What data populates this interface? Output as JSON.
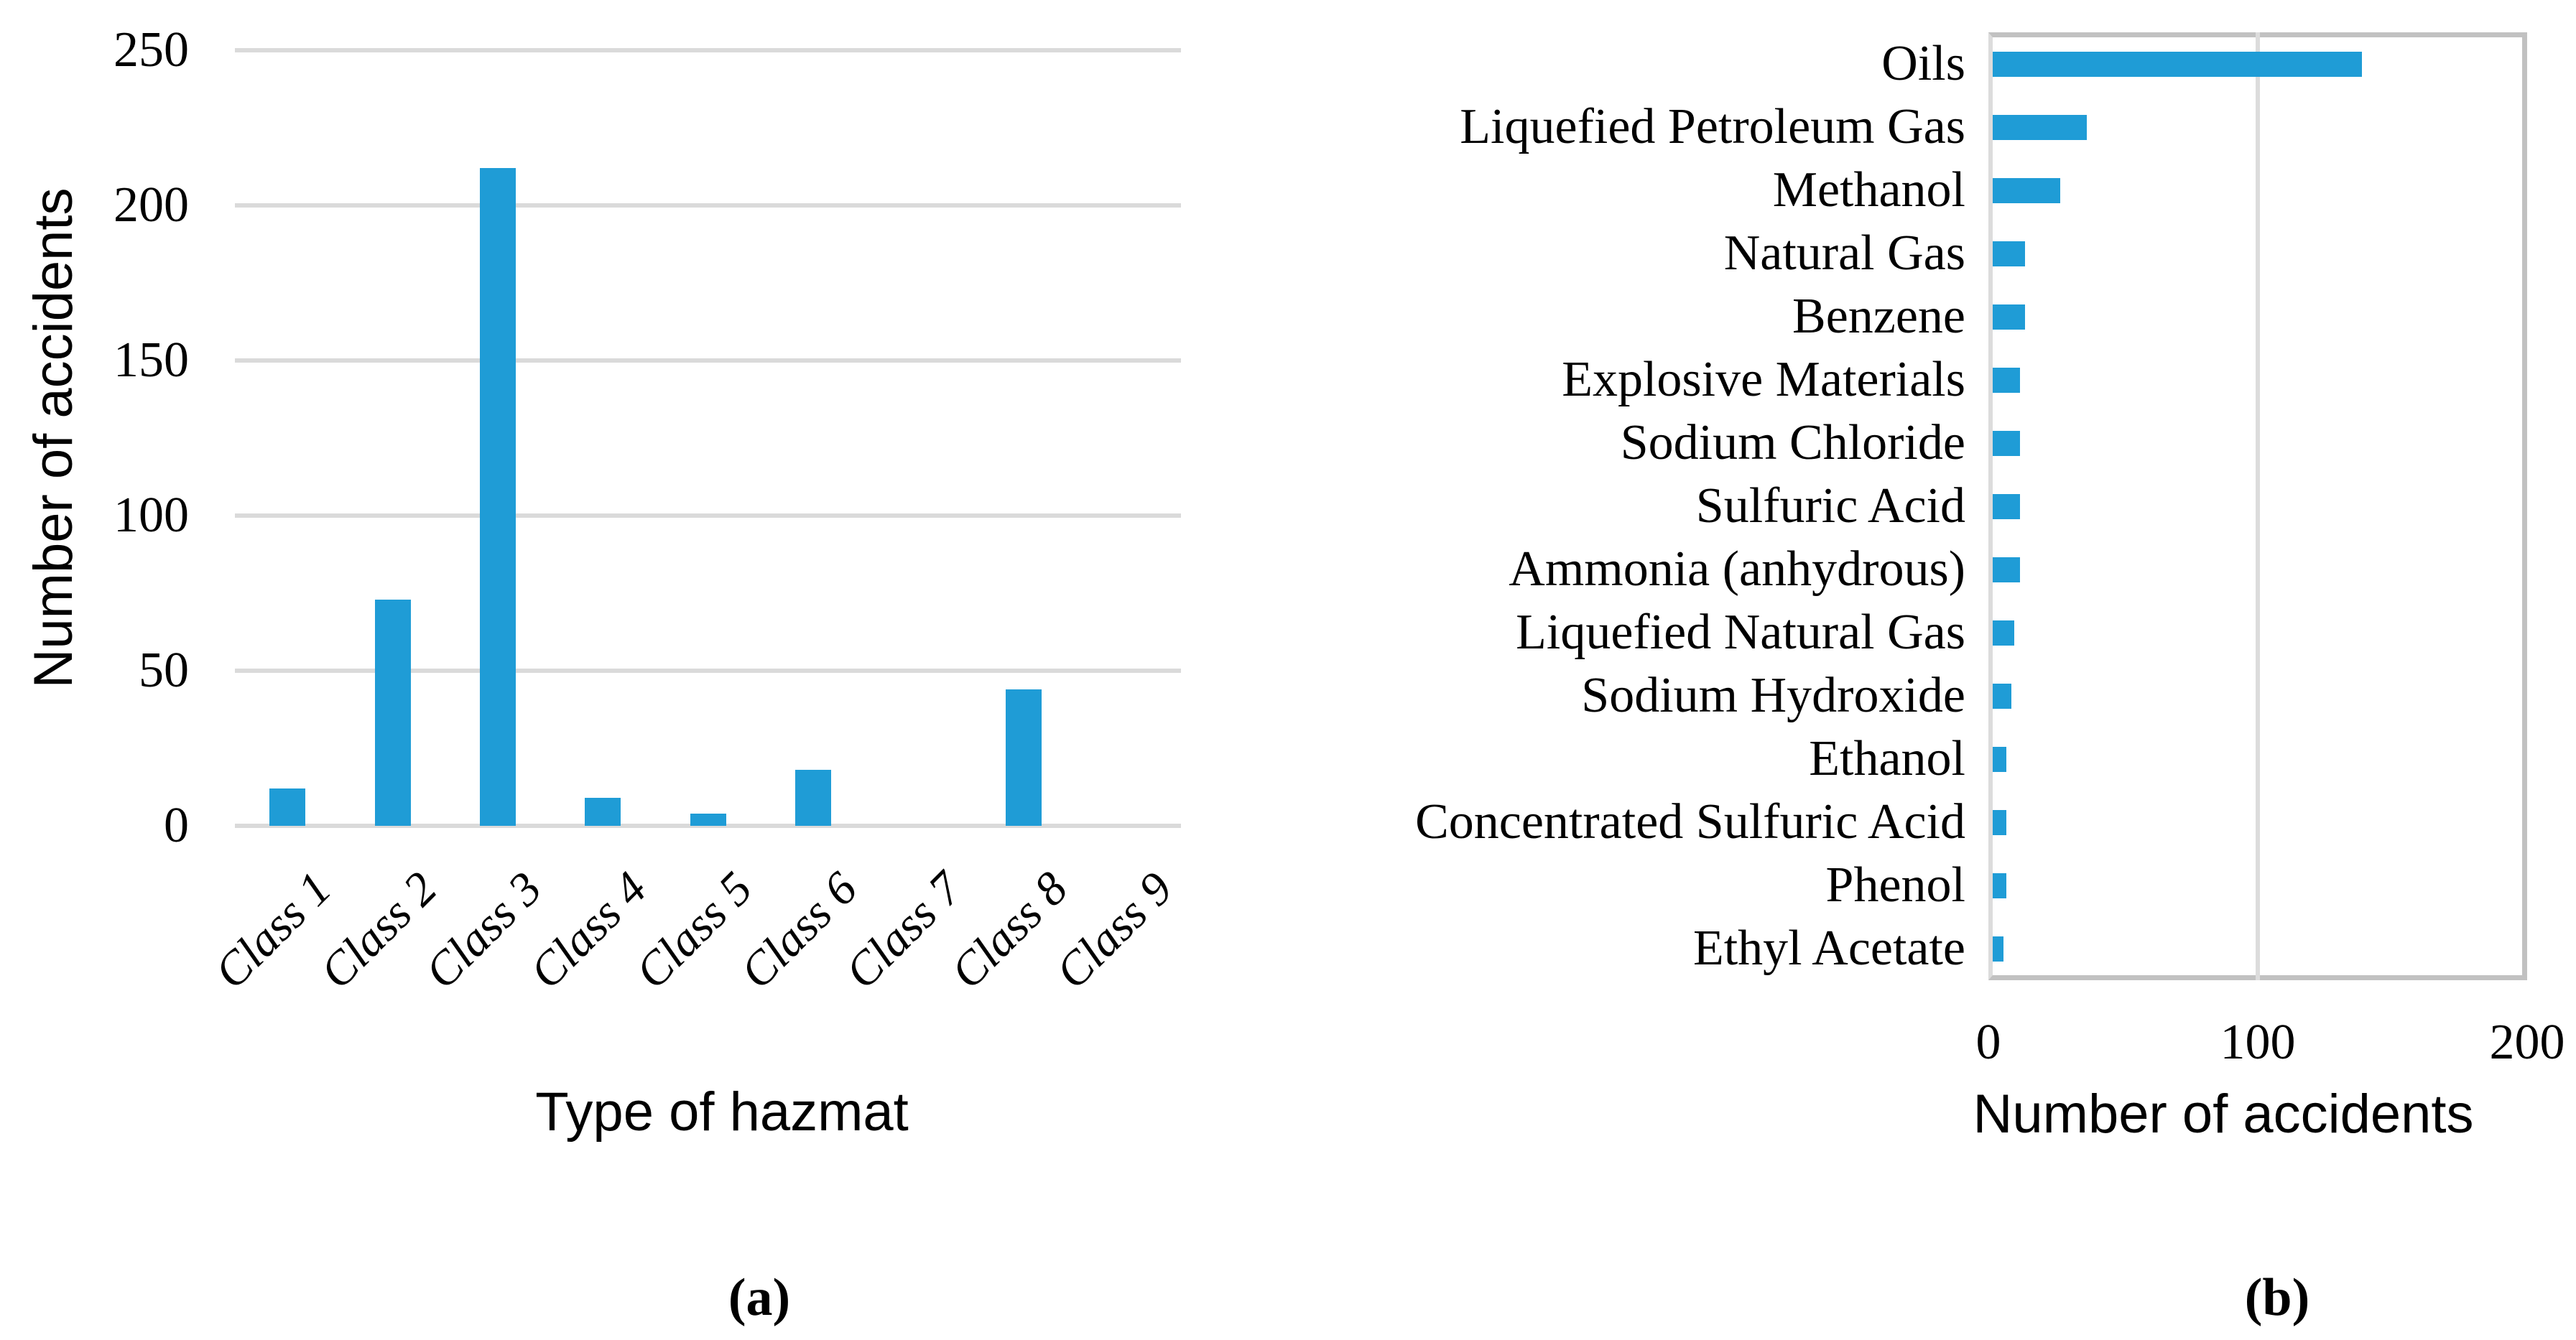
{
  "figure": {
    "panel_a": {
      "caption": "(a)",
      "xlabel": "Type of hazmat",
      "ylabel": "Number of accidents"
    },
    "panel_b": {
      "caption": "(b)",
      "xlabel": "Number of accidents"
    }
  },
  "colors": {
    "bar": "#1F9CD6",
    "gridline": "#DADADA",
    "panel_b_border": "#C1C1C1",
    "text": "#000000",
    "background": "#FFFFFF"
  },
  "chart_data": [
    {
      "type": "bar",
      "orientation": "vertical",
      "title": "",
      "xlabel": "Type of hazmat",
      "ylabel": "Number of accidents",
      "categories": [
        "Class 1",
        "Class 2",
        "Class 3",
        "Class 4",
        "Class 5",
        "Class 6",
        "Class 7",
        "Class 8",
        "Class 9"
      ],
      "values": [
        12,
        73,
        212,
        9,
        4,
        18,
        0,
        44,
        0
      ],
      "ylim": [
        0,
        250
      ],
      "yticks": [
        0,
        50,
        100,
        150,
        200,
        250
      ],
      "grid": true,
      "legend": "none",
      "caption": "(a)"
    },
    {
      "type": "bar",
      "orientation": "horizontal",
      "title": "",
      "xlabel": "Number of accidents",
      "ylabel": "",
      "categories": [
        "Oils",
        "Liquefied Petroleum Gas",
        "Methanol",
        "Natural Gas",
        "Benzene",
        "Explosive Materials",
        "Sodium Chloride",
        "Sulfuric Acid",
        "Ammonia (anhydrous)",
        "Liquefied Natural Gas",
        "Sodium Hydroxide",
        "Ethanol",
        "Concentrated Sulfuric Acid",
        "Phenol",
        "Ethyl Acetate"
      ],
      "values": [
        137,
        35,
        25,
        12,
        12,
        10,
        10,
        10,
        10,
        8,
        7,
        5,
        5,
        5,
        4
      ],
      "xlim": [
        0,
        200
      ],
      "xticks": [
        0,
        100,
        200
      ],
      "grid": true,
      "legend": "none",
      "caption": "(b)"
    }
  ]
}
